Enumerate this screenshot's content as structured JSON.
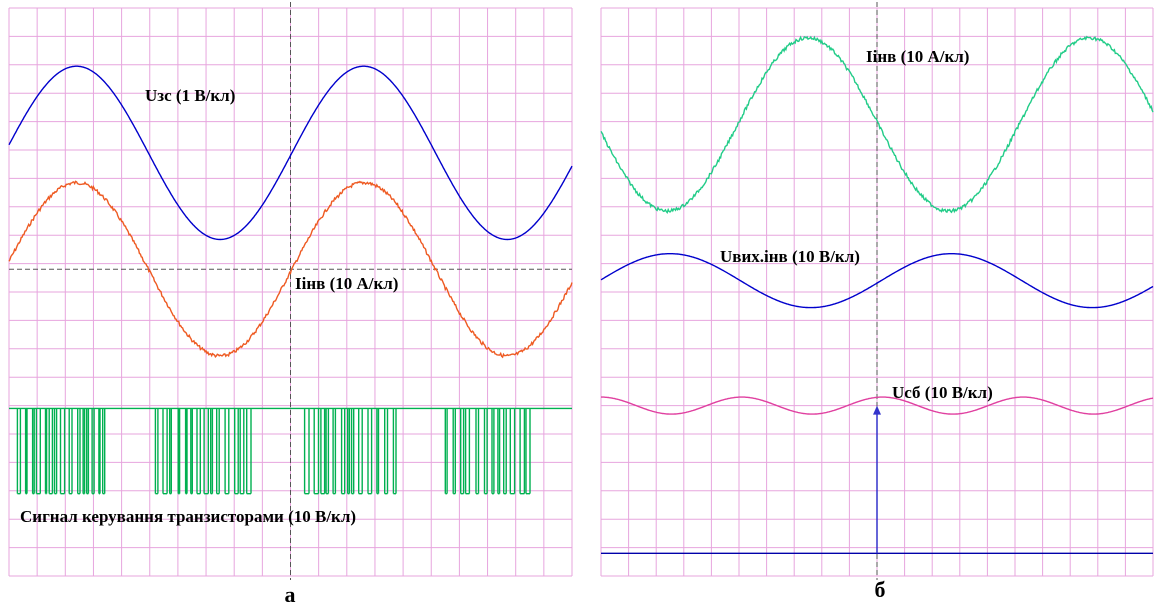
{
  "chart_data": [
    {
      "type": "line",
      "panel_caption": "а",
      "grid": true,
      "grid_divisions": {
        "x": 20,
        "y": 20
      },
      "grid_color": "#e7a5de",
      "series": [
        {
          "name": "Uзс (1 В/кл)",
          "label": "Uзс (1 В/кл)",
          "color": "#0000cc",
          "kind": "sine",
          "center_div": 5.1,
          "amplitude_div": 3.05,
          "period_div": 10.2,
          "peak_x_div": 2.4,
          "noise_div": 0.0
        },
        {
          "name": "Iінв (10 А/кл)",
          "label": "Iінв (10 А/кл)",
          "color": "#ee5a22",
          "kind": "sine",
          "center_div": 9.2,
          "amplitude_div": 3.05,
          "period_div": 10.2,
          "peak_x_div": 2.4,
          "noise_div": 0.06
        },
        {
          "name": "Сигнал керування транзисторами (10 В/кл)",
          "label": "Сигнал керування транзисторами (10 В/кл)",
          "color": "#00b050",
          "kind": "pwm",
          "high_div": 14.1,
          "low_div": 17.1,
          "bursts_div": [
            [
              0.3,
              3.4
            ],
            [
              5.2,
              8.6
            ],
            [
              10.5,
              13.8
            ],
            [
              15.5,
              18.7
            ]
          ]
        }
      ]
    },
    {
      "type": "line",
      "panel_caption": "б",
      "grid": true,
      "grid_divisions": {
        "x": 20,
        "y": 20
      },
      "grid_color": "#e7a5de",
      "series": [
        {
          "name": "Iінв (10 А/кл)",
          "label": "Iінв (10 А/кл)",
          "color": "#22cc88",
          "kind": "sine",
          "center_div": 4.1,
          "amplitude_div": 3.05,
          "period_div": 10.2,
          "peak_x_div": 7.5,
          "noise_div": 0.06
        },
        {
          "name": "Uвих.інв (10 В/кл)",
          "label": "Uвих.інв (10 В/кл)",
          "color": "#0000cc",
          "kind": "sine",
          "center_div": 9.6,
          "amplitude_div": 0.95,
          "period_div": 10.2,
          "peak_x_div": 2.5,
          "noise_div": 0.0
        },
        {
          "name": "Uсб (10 В/кл)",
          "label": "Uсб (10 В/кл)",
          "color": "#e040a0",
          "kind": "sine",
          "center_div": 14.0,
          "amplitude_div": 0.3,
          "period_div": 5.1,
          "peak_x_div": 0.0,
          "noise_div": 0.0
        },
        {
          "name": "",
          "color": "#0000aa",
          "kind": "hline",
          "y_div": 19.2
        }
      ],
      "annotations": [
        {
          "kind": "arrow",
          "x_div": 10.0,
          "y_from_div": 19.2,
          "y_to_div": 14.0,
          "color": "#3333cc"
        }
      ]
    }
  ]
}
